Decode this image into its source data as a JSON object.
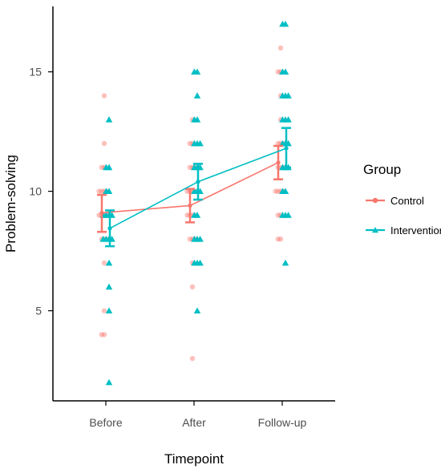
{
  "chart_data": {
    "type": "scatter",
    "xlabel": "Timepoint",
    "ylabel": "Problem-solving",
    "categories": [
      "Before",
      "After",
      "Follow-up"
    ],
    "yticks": [
      5,
      10,
      15
    ],
    "ylim": [
      1.5,
      18.0
    ],
    "grid": false,
    "legend": {
      "title": "Group",
      "placement": "right",
      "entries": [
        "Control",
        "Intervention"
      ]
    },
    "series": [
      {
        "name": "Control",
        "color": "#F8766D",
        "marker": "circle",
        "means": [
          9.1,
          9.4,
          11.2
        ],
        "ci_low": [
          8.3,
          8.7,
          10.5
        ],
        "ci_high": [
          9.85,
          10.1,
          11.9
        ],
        "points": [
          [
            14,
            12,
            11,
            11,
            10,
            10,
            10,
            10,
            9,
            9,
            9,
            9,
            8,
            8,
            8,
            7,
            5,
            4,
            4
          ],
          [
            13,
            12,
            12,
            11,
            11,
            11,
            10,
            10,
            10,
            10,
            9,
            9,
            9,
            9,
            8,
            8,
            8,
            7,
            6,
            3
          ],
          [
            16,
            15,
            15,
            14,
            13,
            12,
            12,
            12,
            11,
            11,
            11,
            10,
            10,
            10,
            10,
            9,
            9,
            8,
            8
          ]
        ]
      },
      {
        "name": "Intervention",
        "color": "#00BFC4",
        "marker": "triangle",
        "means": [
          8.45,
          10.4,
          11.8
        ],
        "ci_low": [
          7.7,
          9.65,
          11.0
        ],
        "ci_high": [
          9.2,
          11.15,
          12.65
        ],
        "points": [
          [
            13,
            11,
            11,
            10,
            10,
            9,
            9,
            9,
            9,
            8,
            8,
            8,
            8,
            7,
            6,
            5,
            2
          ],
          [
            15,
            15,
            14,
            13,
            13,
            12,
            12,
            12,
            11,
            11,
            11,
            10,
            10,
            10,
            9,
            9,
            8,
            8,
            8,
            7,
            7,
            7,
            5
          ],
          [
            17,
            17,
            15,
            15,
            14,
            14,
            14,
            13,
            13,
            13,
            12,
            12,
            12,
            11,
            11,
            11,
            10,
            10,
            9,
            9,
            9,
            7
          ]
        ]
      }
    ]
  }
}
